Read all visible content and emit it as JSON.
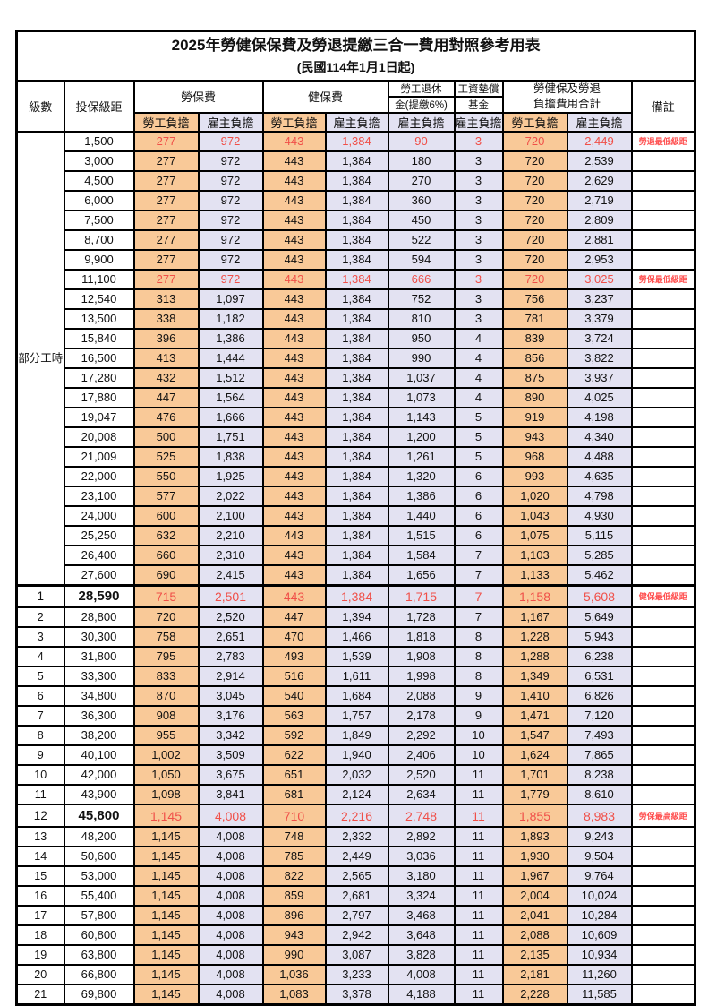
{
  "title": "2025年勞健保保費及勞退提繳三合一費用對照參考用表",
  "subtitle": "(民國114年1月1日起)",
  "colors": {
    "employee_col_bg": "#f9c998",
    "employer_col_bg": "#e3e2f2",
    "highlight_value_red": "#f04f48",
    "note_red": "#ff5050",
    "grid_border": "#000000"
  },
  "table": {
    "header": {
      "level": "級數",
      "bracket": "投保級距",
      "labor_insurance": "勞保費",
      "health_insurance": "健保費",
      "pension_line1": "勞工退休",
      "pension_line2": "金(提繳6%)",
      "wage_fund_line1": "工資墊償",
      "wage_fund_line2": "基金",
      "total_line1": "勞健保及勞退",
      "total_line2": "負擔費用合計",
      "remarks": "備註",
      "employee": "勞工負擔",
      "employer": "雇主負擔"
    },
    "group_label": "部分工時",
    "rows": [
      {
        "lv": "",
        "amt": "1,500",
        "v": [
          "277",
          "972",
          "443",
          "1,384",
          "90",
          "3",
          "720",
          "2,449"
        ],
        "note": "勞退最低級距",
        "red": true,
        "big": false
      },
      {
        "lv": "",
        "amt": "3,000",
        "v": [
          "277",
          "972",
          "443",
          "1,384",
          "180",
          "3",
          "720",
          "2,539"
        ],
        "note": "",
        "red": false,
        "big": false
      },
      {
        "lv": "",
        "amt": "4,500",
        "v": [
          "277",
          "972",
          "443",
          "1,384",
          "270",
          "3",
          "720",
          "2,629"
        ],
        "note": "",
        "red": false,
        "big": false
      },
      {
        "lv": "",
        "amt": "6,000",
        "v": [
          "277",
          "972",
          "443",
          "1,384",
          "360",
          "3",
          "720",
          "2,719"
        ],
        "note": "",
        "red": false,
        "big": false
      },
      {
        "lv": "",
        "amt": "7,500",
        "v": [
          "277",
          "972",
          "443",
          "1,384",
          "450",
          "3",
          "720",
          "2,809"
        ],
        "note": "",
        "red": false,
        "big": false
      },
      {
        "lv": "",
        "amt": "8,700",
        "v": [
          "277",
          "972",
          "443",
          "1,384",
          "522",
          "3",
          "720",
          "2,881"
        ],
        "note": "",
        "red": false,
        "big": false
      },
      {
        "lv": "",
        "amt": "9,900",
        "v": [
          "277",
          "972",
          "443",
          "1,384",
          "594",
          "3",
          "720",
          "2,953"
        ],
        "note": "",
        "red": false,
        "big": false
      },
      {
        "lv": "",
        "amt": "11,100",
        "v": [
          "277",
          "972",
          "443",
          "1,384",
          "666",
          "3",
          "720",
          "3,025"
        ],
        "note": "勞保最低級距",
        "red": true,
        "big": false
      },
      {
        "lv": "",
        "amt": "12,540",
        "v": [
          "313",
          "1,097",
          "443",
          "1,384",
          "752",
          "3",
          "756",
          "3,237"
        ],
        "note": "",
        "red": false,
        "big": false
      },
      {
        "lv": "",
        "amt": "13,500",
        "v": [
          "338",
          "1,182",
          "443",
          "1,384",
          "810",
          "3",
          "781",
          "3,379"
        ],
        "note": "",
        "red": false,
        "big": false
      },
      {
        "lv": "",
        "amt": "15,840",
        "v": [
          "396",
          "1,386",
          "443",
          "1,384",
          "950",
          "4",
          "839",
          "3,724"
        ],
        "note": "",
        "red": false,
        "big": false
      },
      {
        "lv": "",
        "amt": "16,500",
        "v": [
          "413",
          "1,444",
          "443",
          "1,384",
          "990",
          "4",
          "856",
          "3,822"
        ],
        "note": "",
        "red": false,
        "big": false
      },
      {
        "lv": "",
        "amt": "17,280",
        "v": [
          "432",
          "1,512",
          "443",
          "1,384",
          "1,037",
          "4",
          "875",
          "3,937"
        ],
        "note": "",
        "red": false,
        "big": false
      },
      {
        "lv": "",
        "amt": "17,880",
        "v": [
          "447",
          "1,564",
          "443",
          "1,384",
          "1,073",
          "4",
          "890",
          "4,025"
        ],
        "note": "",
        "red": false,
        "big": false
      },
      {
        "lv": "",
        "amt": "19,047",
        "v": [
          "476",
          "1,666",
          "443",
          "1,384",
          "1,143",
          "5",
          "919",
          "4,198"
        ],
        "note": "",
        "red": false,
        "big": false
      },
      {
        "lv": "",
        "amt": "20,008",
        "v": [
          "500",
          "1,751",
          "443",
          "1,384",
          "1,200",
          "5",
          "943",
          "4,340"
        ],
        "note": "",
        "red": false,
        "big": false
      },
      {
        "lv": "",
        "amt": "21,009",
        "v": [
          "525",
          "1,838",
          "443",
          "1,384",
          "1,261",
          "5",
          "968",
          "4,488"
        ],
        "note": "",
        "red": false,
        "big": false
      },
      {
        "lv": "",
        "amt": "22,000",
        "v": [
          "550",
          "1,925",
          "443",
          "1,384",
          "1,320",
          "6",
          "993",
          "4,635"
        ],
        "note": "",
        "red": false,
        "big": false
      },
      {
        "lv": "",
        "amt": "23,100",
        "v": [
          "577",
          "2,022",
          "443",
          "1,384",
          "1,386",
          "6",
          "1,020",
          "4,798"
        ],
        "note": "",
        "red": false,
        "big": false
      },
      {
        "lv": "",
        "amt": "24,000",
        "v": [
          "600",
          "2,100",
          "443",
          "1,384",
          "1,440",
          "6",
          "1,043",
          "4,930"
        ],
        "note": "",
        "red": false,
        "big": false
      },
      {
        "lv": "",
        "amt": "25,250",
        "v": [
          "632",
          "2,210",
          "443",
          "1,384",
          "1,515",
          "6",
          "1,075",
          "5,115"
        ],
        "note": "",
        "red": false,
        "big": false
      },
      {
        "lv": "",
        "amt": "26,400",
        "v": [
          "660",
          "2,310",
          "443",
          "1,384",
          "1,584",
          "7",
          "1,103",
          "5,285"
        ],
        "note": "",
        "red": false,
        "big": false
      },
      {
        "lv": "",
        "amt": "27,600",
        "v": [
          "690",
          "2,415",
          "443",
          "1,384",
          "1,656",
          "7",
          "1,133",
          "5,462"
        ],
        "note": "",
        "red": false,
        "big": false
      },
      {
        "lv": "1",
        "amt": "28,590",
        "v": [
          "715",
          "2,501",
          "443",
          "1,384",
          "1,715",
          "7",
          "1,158",
          "5,608"
        ],
        "note": "健保最低級距",
        "red": true,
        "big": true
      },
      {
        "lv": "2",
        "amt": "28,800",
        "v": [
          "720",
          "2,520",
          "447",
          "1,394",
          "1,728",
          "7",
          "1,167",
          "5,649"
        ],
        "note": "",
        "red": false,
        "big": false
      },
      {
        "lv": "3",
        "amt": "30,300",
        "v": [
          "758",
          "2,651",
          "470",
          "1,466",
          "1,818",
          "8",
          "1,228",
          "5,943"
        ],
        "note": "",
        "red": false,
        "big": false
      },
      {
        "lv": "4",
        "amt": "31,800",
        "v": [
          "795",
          "2,783",
          "493",
          "1,539",
          "1,908",
          "8",
          "1,288",
          "6,238"
        ],
        "note": "",
        "red": false,
        "big": false
      },
      {
        "lv": "5",
        "amt": "33,300",
        "v": [
          "833",
          "2,914",
          "516",
          "1,611",
          "1,998",
          "8",
          "1,349",
          "6,531"
        ],
        "note": "",
        "red": false,
        "big": false
      },
      {
        "lv": "6",
        "amt": "34,800",
        "v": [
          "870",
          "3,045",
          "540",
          "1,684",
          "2,088",
          "9",
          "1,410",
          "6,826"
        ],
        "note": "",
        "red": false,
        "big": false
      },
      {
        "lv": "7",
        "amt": "36,300",
        "v": [
          "908",
          "3,176",
          "563",
          "1,757",
          "2,178",
          "9",
          "1,471",
          "7,120"
        ],
        "note": "",
        "red": false,
        "big": false
      },
      {
        "lv": "8",
        "amt": "38,200",
        "v": [
          "955",
          "3,342",
          "592",
          "1,849",
          "2,292",
          "10",
          "1,547",
          "7,493"
        ],
        "note": "",
        "red": false,
        "big": false
      },
      {
        "lv": "9",
        "amt": "40,100",
        "v": [
          "1,002",
          "3,509",
          "622",
          "1,940",
          "2,406",
          "10",
          "1,624",
          "7,865"
        ],
        "note": "",
        "red": false,
        "big": false
      },
      {
        "lv": "10",
        "amt": "42,000",
        "v": [
          "1,050",
          "3,675",
          "651",
          "2,032",
          "2,520",
          "11",
          "1,701",
          "8,238"
        ],
        "note": "",
        "red": false,
        "big": false
      },
      {
        "lv": "11",
        "amt": "43,900",
        "v": [
          "1,098",
          "3,841",
          "681",
          "2,124",
          "2,634",
          "11",
          "1,779",
          "8,610"
        ],
        "note": "",
        "red": false,
        "big": false
      },
      {
        "lv": "12",
        "amt": "45,800",
        "v": [
          "1,145",
          "4,008",
          "710",
          "2,216",
          "2,748",
          "11",
          "1,855",
          "8,983"
        ],
        "note": "勞保最高級距",
        "red": true,
        "big": true
      },
      {
        "lv": "13",
        "amt": "48,200",
        "v": [
          "1,145",
          "4,008",
          "748",
          "2,332",
          "2,892",
          "11",
          "1,893",
          "9,243"
        ],
        "note": "",
        "red": false,
        "big": false
      },
      {
        "lv": "14",
        "amt": "50,600",
        "v": [
          "1,145",
          "4,008",
          "785",
          "2,449",
          "3,036",
          "11",
          "1,930",
          "9,504"
        ],
        "note": "",
        "red": false,
        "big": false
      },
      {
        "lv": "15",
        "amt": "53,000",
        "v": [
          "1,145",
          "4,008",
          "822",
          "2,565",
          "3,180",
          "11",
          "1,967",
          "9,764"
        ],
        "note": "",
        "red": false,
        "big": false
      },
      {
        "lv": "16",
        "amt": "55,400",
        "v": [
          "1,145",
          "4,008",
          "859",
          "2,681",
          "3,324",
          "11",
          "2,004",
          "10,024"
        ],
        "note": "",
        "red": false,
        "big": false
      },
      {
        "lv": "17",
        "amt": "57,800",
        "v": [
          "1,145",
          "4,008",
          "896",
          "2,797",
          "3,468",
          "11",
          "2,041",
          "10,284"
        ],
        "note": "",
        "red": false,
        "big": false
      },
      {
        "lv": "18",
        "amt": "60,800",
        "v": [
          "1,145",
          "4,008",
          "943",
          "2,942",
          "3,648",
          "11",
          "2,088",
          "10,609"
        ],
        "note": "",
        "red": false,
        "big": false
      },
      {
        "lv": "19",
        "amt": "63,800",
        "v": [
          "1,145",
          "4,008",
          "990",
          "3,087",
          "3,828",
          "11",
          "2,135",
          "10,934"
        ],
        "note": "",
        "red": false,
        "big": false
      },
      {
        "lv": "20",
        "amt": "66,800",
        "v": [
          "1,145",
          "4,008",
          "1,036",
          "3,233",
          "4,008",
          "11",
          "2,181",
          "11,260"
        ],
        "note": "",
        "red": false,
        "big": false
      },
      {
        "lv": "21",
        "amt": "69,800",
        "v": [
          "1,145",
          "4,008",
          "1,083",
          "3,378",
          "4,188",
          "11",
          "2,228",
          "11,585"
        ],
        "note": "",
        "red": false,
        "big": false
      }
    ]
  }
}
